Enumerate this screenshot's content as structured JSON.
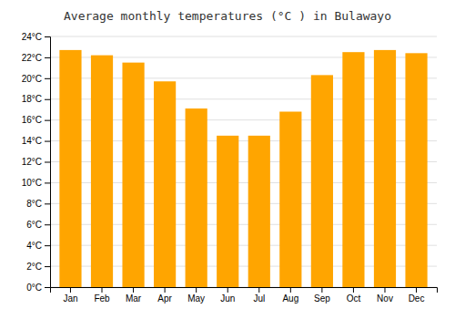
{
  "chart_data": {
    "type": "bar",
    "title": "Average monthly temperatures (°C ) in Bulawayo",
    "categories": [
      "Jan",
      "Feb",
      "Mar",
      "Apr",
      "May",
      "Jun",
      "Jul",
      "Aug",
      "Sep",
      "Oct",
      "Nov",
      "Dec"
    ],
    "values": [
      22.7,
      22.2,
      21.5,
      19.7,
      17.1,
      14.5,
      14.5,
      16.8,
      20.3,
      22.5,
      22.7,
      22.4
    ],
    "color": "#FFA500",
    "ylim": [
      0,
      24
    ],
    "yticks": [
      {
        "value": 0,
        "label": "0°C"
      },
      {
        "value": 2,
        "label": "2°C"
      },
      {
        "value": 4,
        "label": "4°C"
      },
      {
        "value": 6,
        "label": "6°C"
      },
      {
        "value": 8,
        "label": "8°C"
      },
      {
        "value": 10,
        "label": "10°C"
      },
      {
        "value": 12,
        "label": "12°C"
      },
      {
        "value": 14,
        "label": "14°C"
      },
      {
        "value": 16,
        "label": "16°C"
      },
      {
        "value": 18,
        "label": "18°C"
      },
      {
        "value": 20,
        "label": "20°C"
      },
      {
        "value": 22,
        "label": "22°C"
      },
      {
        "value": 24,
        "label": "24°C"
      }
    ],
    "grid": true
  }
}
